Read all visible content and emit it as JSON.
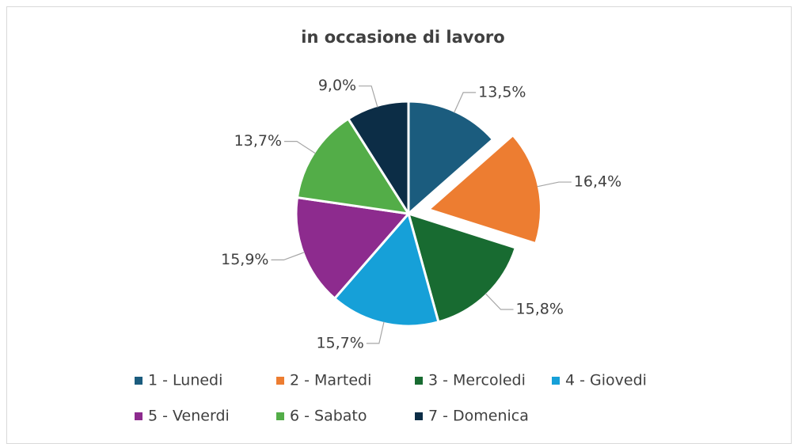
{
  "chart_data": {
    "type": "pie",
    "title": "in occasione di lavoro",
    "categories": [
      "1 - Lunedi",
      "2 - Martedi",
      "3 - Mercoledi",
      "4 - Giovedi",
      "5 - Venerdi",
      "6 - Sabato",
      "7 - Domenica"
    ],
    "values": [
      13.5,
      16.4,
      15.8,
      15.7,
      15.9,
      13.7,
      9.0
    ],
    "value_labels": [
      "13,5%",
      "16,4%",
      "15,8%",
      "15,7%",
      "15,9%",
      "13,7%",
      "9,0%"
    ],
    "colors": [
      "#1b5c7e",
      "#ed7d31",
      "#186b31",
      "#16a0d8",
      "#8d2b8e",
      "#53ad48",
      "#0c2d46"
    ],
    "exploded": [
      false,
      true,
      false,
      false,
      false,
      false,
      false
    ],
    "legend": "bottom"
  }
}
